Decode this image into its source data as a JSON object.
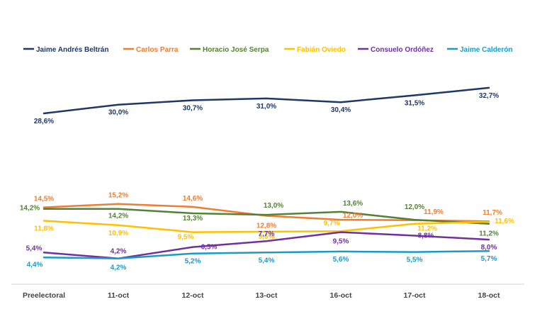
{
  "chart_data": {
    "type": "line",
    "title": "",
    "xlabel": "",
    "ylabel": "",
    "categories": [
      "Preelectoral",
      "11-oct",
      "12-oct",
      "13-oct",
      "16-oct",
      "17-oct",
      "18-oct"
    ],
    "grid": false,
    "legend_position": "top",
    "series": [
      {
        "name": "Jaime Andrés Beltrán",
        "color": "#1f3864",
        "values": [
          28.6,
          30.0,
          30.7,
          31.0,
          30.4,
          31.5,
          32.7
        ],
        "labels": [
          "28,6%",
          "30,0%",
          "30,7%",
          "31,0%",
          "30,4%",
          "31,5%",
          "32,7%"
        ]
      },
      {
        "name": "Carlos Parra",
        "color": "#ed7d31",
        "values": [
          14.5,
          15.2,
          14.6,
          12.8,
          12.0,
          11.9,
          11.7
        ],
        "labels": [
          "14,5%",
          "15,2%",
          "14,6%",
          "12,8%",
          "12,0%",
          "11,9%",
          "11,7%"
        ]
      },
      {
        "name": "Horacio José Serpa",
        "color": "#548235",
        "values": [
          14.2,
          14.2,
          13.3,
          13.0,
          13.6,
          12.0,
          11.2
        ],
        "labels": [
          "14,2%",
          "14,2%",
          "13,3%",
          "13,0%",
          "13,6%",
          "12,0%",
          "11,2%"
        ]
      },
      {
        "name": "Fabián Oviedo",
        "color": "#ffc000",
        "values": [
          11.8,
          10.9,
          9.5,
          9.6,
          9.7,
          11.2,
          11.6
        ],
        "labels": [
          "11,8%",
          "10,9%",
          "9,5%",
          "9,6%",
          "9,7%",
          "11,2%",
          "11,6%"
        ]
      },
      {
        "name": "Consuelo Ordóñez",
        "color": "#7030a0",
        "values": [
          5.4,
          4.2,
          6.5,
          7.7,
          9.5,
          8.8,
          8.0
        ],
        "labels": [
          "5,4%",
          "4,2%",
          "6,5%",
          "7,7%",
          "9,5%",
          "8,8%",
          "8,0%"
        ]
      },
      {
        "name": "Jaime Calderón",
        "color": "#1b9bc4",
        "values": [
          4.4,
          4.2,
          5.2,
          5.4,
          5.6,
          5.5,
          5.7
        ],
        "labels": [
          "4,4%",
          "4,2%",
          "5,2%",
          "5,4%",
          "5,6%",
          "5,5%",
          "5,7%"
        ]
      }
    ]
  }
}
